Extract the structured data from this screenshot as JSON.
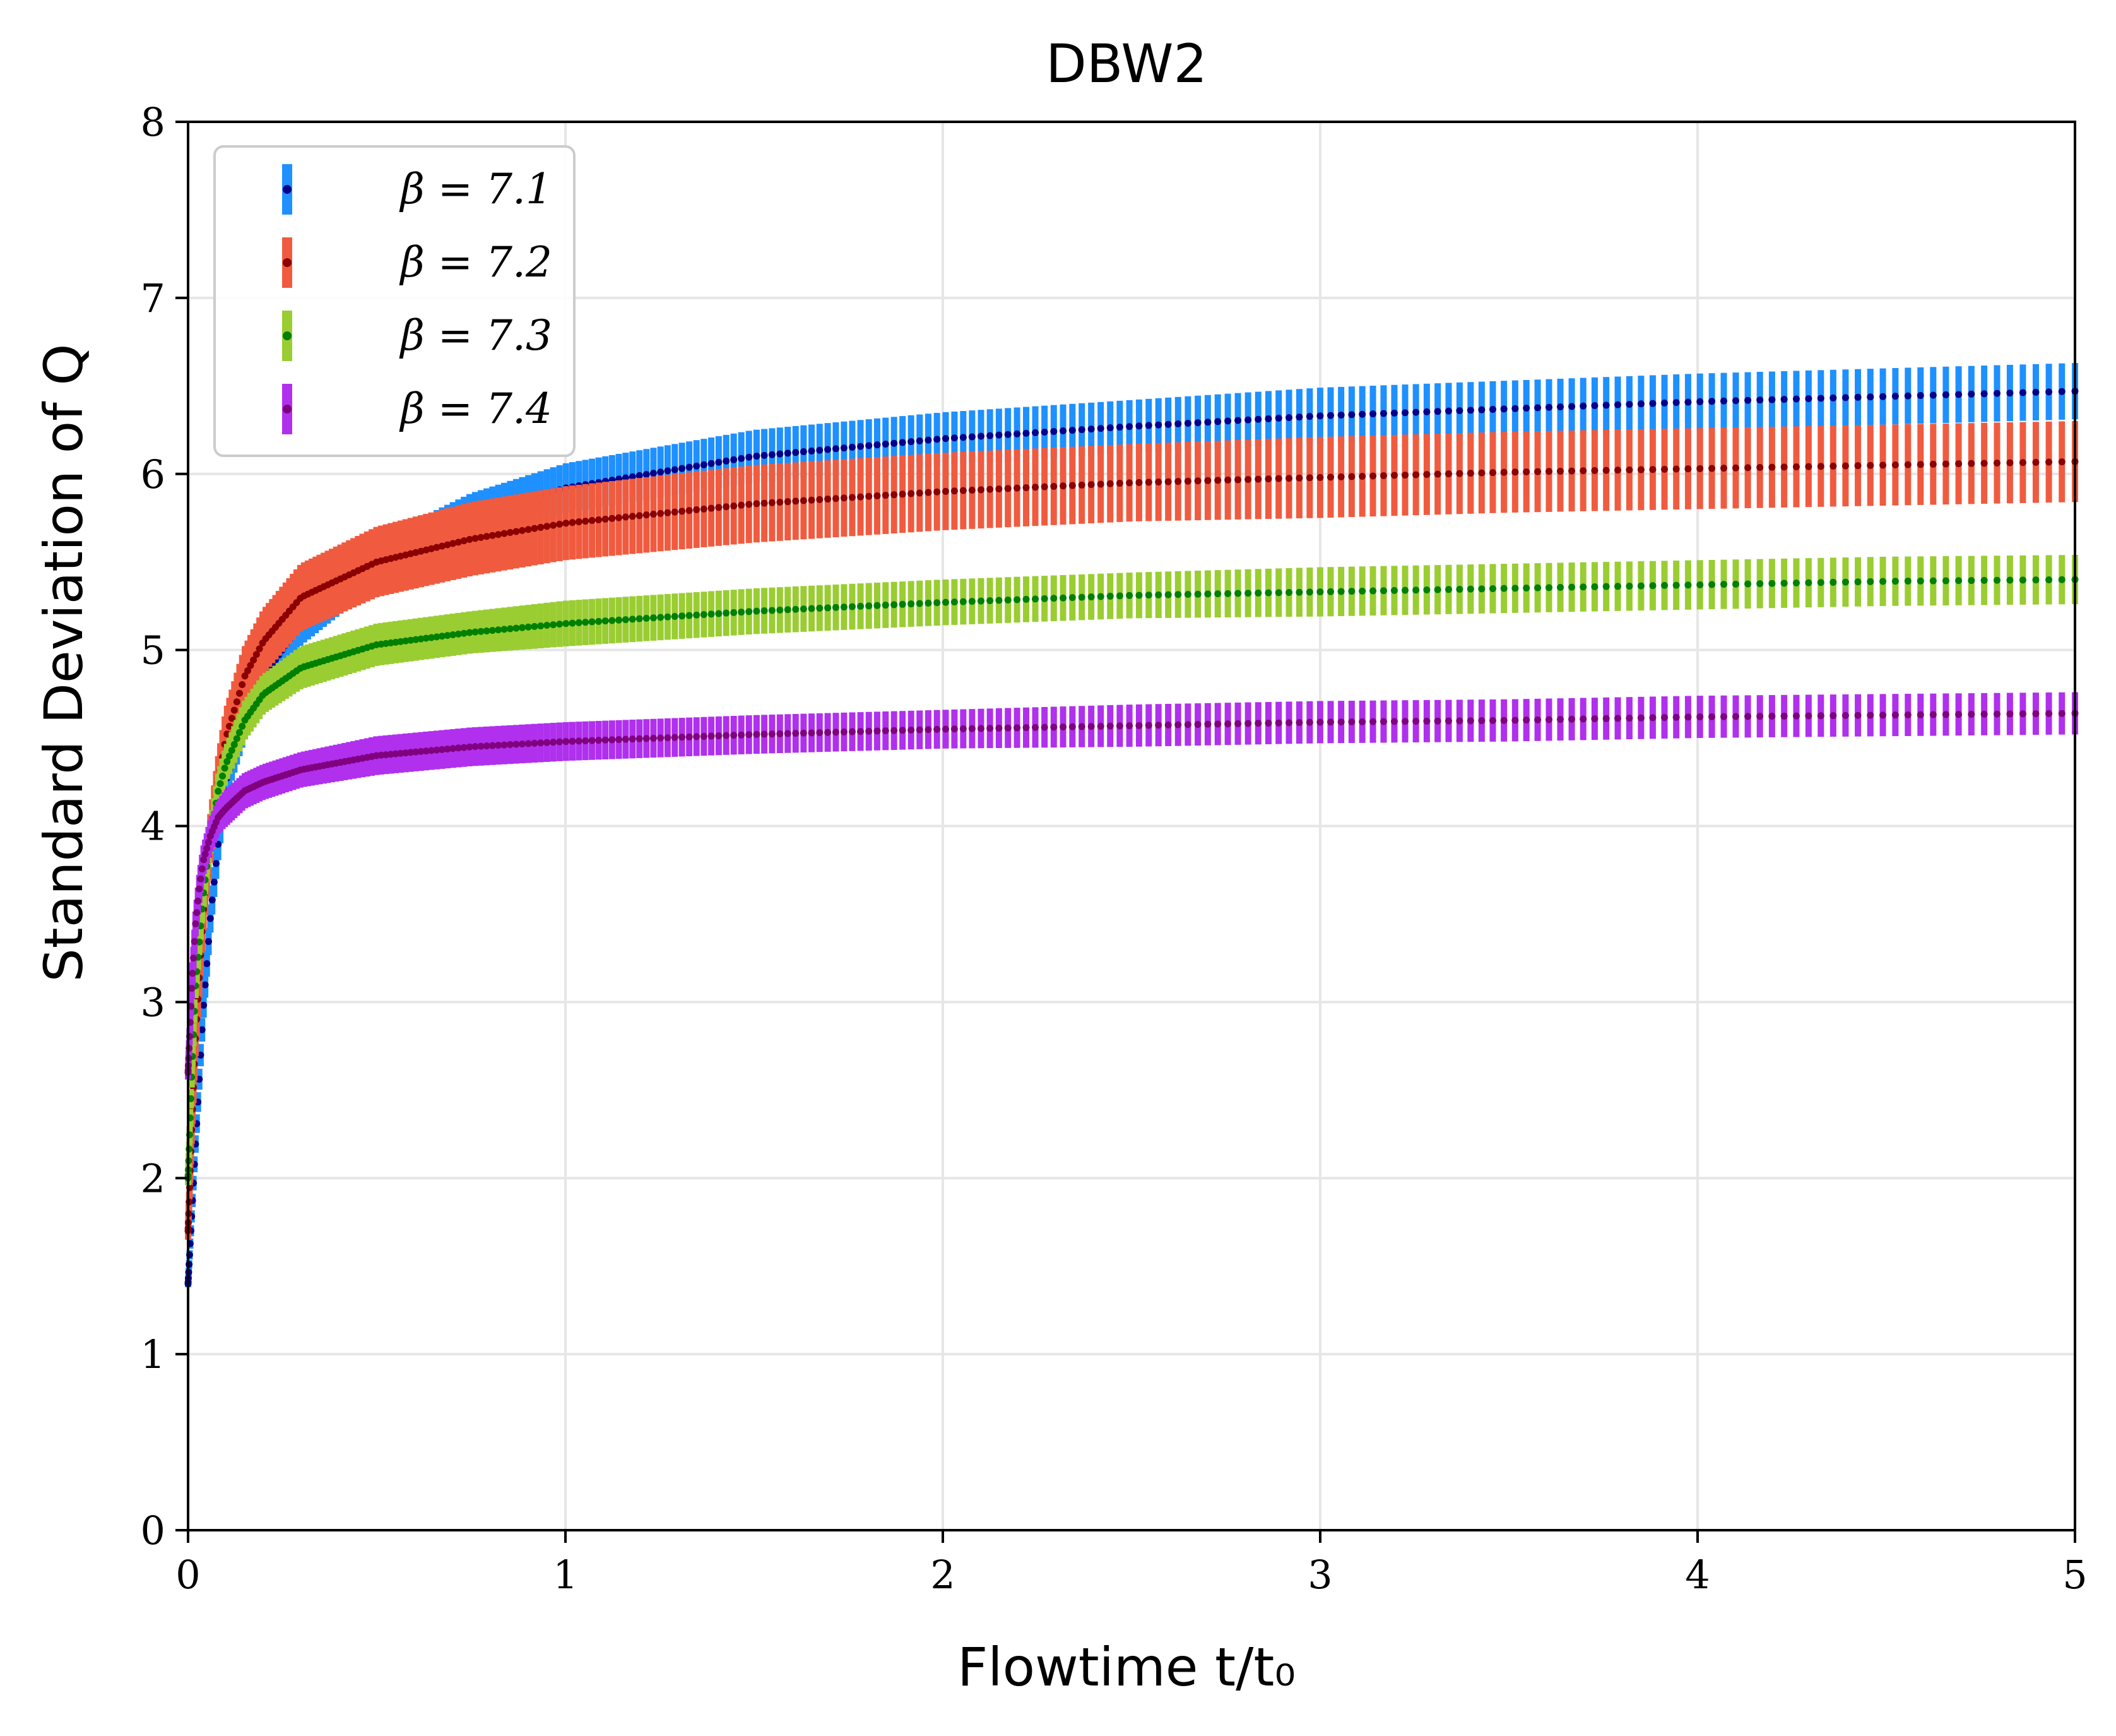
{
  "chart_data": {
    "type": "scatter",
    "title": "DBW2",
    "xlabel": "Flowtime t/t₀",
    "ylabel": "Standard Deviation of Q",
    "xlim": [
      0,
      5
    ],
    "ylim": [
      0,
      8
    ],
    "xticks": [
      "0",
      "1",
      "2",
      "3",
      "4",
      "5"
    ],
    "yticks": [
      "0",
      "1",
      "2",
      "3",
      "4",
      "5",
      "6",
      "7",
      "8"
    ],
    "grid": true,
    "legend_position": "top-left",
    "series": [
      {
        "name": "β = 7.1",
        "band_color": "#1e90ff",
        "line_color": "#00008b",
        "x": [
          0.0,
          0.02,
          0.04,
          0.06,
          0.08,
          0.1,
          0.15,
          0.2,
          0.3,
          0.5,
          0.75,
          1.0,
          1.5,
          2.0,
          2.5,
          3.0,
          3.5,
          4.0,
          4.5,
          5.0
        ],
        "values": [
          1.4,
          2.2,
          2.95,
          3.5,
          3.9,
          4.25,
          4.6,
          4.85,
          5.15,
          5.5,
          5.75,
          5.92,
          6.1,
          6.2,
          6.27,
          6.33,
          6.37,
          6.41,
          6.44,
          6.47
        ],
        "errors": [
          0.02,
          0.05,
          0.07,
          0.08,
          0.09,
          0.1,
          0.11,
          0.12,
          0.12,
          0.13,
          0.14,
          0.14,
          0.15,
          0.15,
          0.15,
          0.16,
          0.16,
          0.16,
          0.16,
          0.16
        ]
      },
      {
        "name": "β = 7.2",
        "band_color": "#f05b3f",
        "line_color": "#8b0000",
        "x": [
          0.0,
          0.01,
          0.02,
          0.04,
          0.06,
          0.08,
          0.1,
          0.15,
          0.2,
          0.3,
          0.5,
          0.75,
          1.0,
          1.5,
          2.0,
          2.5,
          3.0,
          3.5,
          4.0,
          4.5,
          5.0
        ],
        "values": [
          1.7,
          2.3,
          2.8,
          3.5,
          3.95,
          4.25,
          4.5,
          4.85,
          5.05,
          5.3,
          5.5,
          5.63,
          5.72,
          5.83,
          5.9,
          5.95,
          5.98,
          6.01,
          6.03,
          6.05,
          6.07
        ],
        "errors": [
          0.05,
          0.08,
          0.1,
          0.12,
          0.14,
          0.15,
          0.16,
          0.17,
          0.18,
          0.19,
          0.2,
          0.21,
          0.21,
          0.22,
          0.22,
          0.22,
          0.23,
          0.23,
          0.23,
          0.23,
          0.23
        ]
      },
      {
        "name": "β = 7.3",
        "band_color": "#9acd32",
        "line_color": "#008000",
        "x": [
          0.0,
          0.01,
          0.02,
          0.04,
          0.06,
          0.08,
          0.1,
          0.15,
          0.2,
          0.3,
          0.5,
          0.75,
          1.0,
          1.5,
          2.0,
          2.5,
          3.0,
          3.5,
          4.0,
          4.5,
          5.0
        ],
        "values": [
          2.0,
          2.6,
          3.1,
          3.6,
          3.95,
          4.2,
          4.35,
          4.6,
          4.75,
          4.9,
          5.03,
          5.1,
          5.15,
          5.22,
          5.27,
          5.31,
          5.33,
          5.35,
          5.37,
          5.39,
          5.4
        ],
        "errors": [
          0.04,
          0.06,
          0.07,
          0.08,
          0.09,
          0.1,
          0.1,
          0.11,
          0.11,
          0.12,
          0.12,
          0.12,
          0.13,
          0.13,
          0.13,
          0.13,
          0.14,
          0.14,
          0.14,
          0.14,
          0.14
        ]
      },
      {
        "name": "β = 7.4",
        "band_color": "#b030ee",
        "line_color": "#800080",
        "x": [
          0.0,
          0.01,
          0.02,
          0.03,
          0.04,
          0.06,
          0.08,
          0.1,
          0.15,
          0.2,
          0.3,
          0.5,
          0.75,
          1.0,
          1.5,
          2.0,
          2.5,
          3.0,
          3.5,
          4.0,
          4.5,
          5.0
        ],
        "values": [
          2.6,
          3.1,
          3.45,
          3.65,
          3.8,
          3.95,
          4.05,
          4.1,
          4.2,
          4.25,
          4.32,
          4.4,
          4.45,
          4.48,
          4.52,
          4.55,
          4.57,
          4.59,
          4.6,
          4.62,
          4.63,
          4.64
        ],
        "errors": [
          0.04,
          0.06,
          0.07,
          0.08,
          0.08,
          0.09,
          0.09,
          0.1,
          0.1,
          0.1,
          0.1,
          0.11,
          0.11,
          0.11,
          0.11,
          0.11,
          0.12,
          0.12,
          0.12,
          0.12,
          0.12,
          0.12
        ]
      }
    ]
  }
}
